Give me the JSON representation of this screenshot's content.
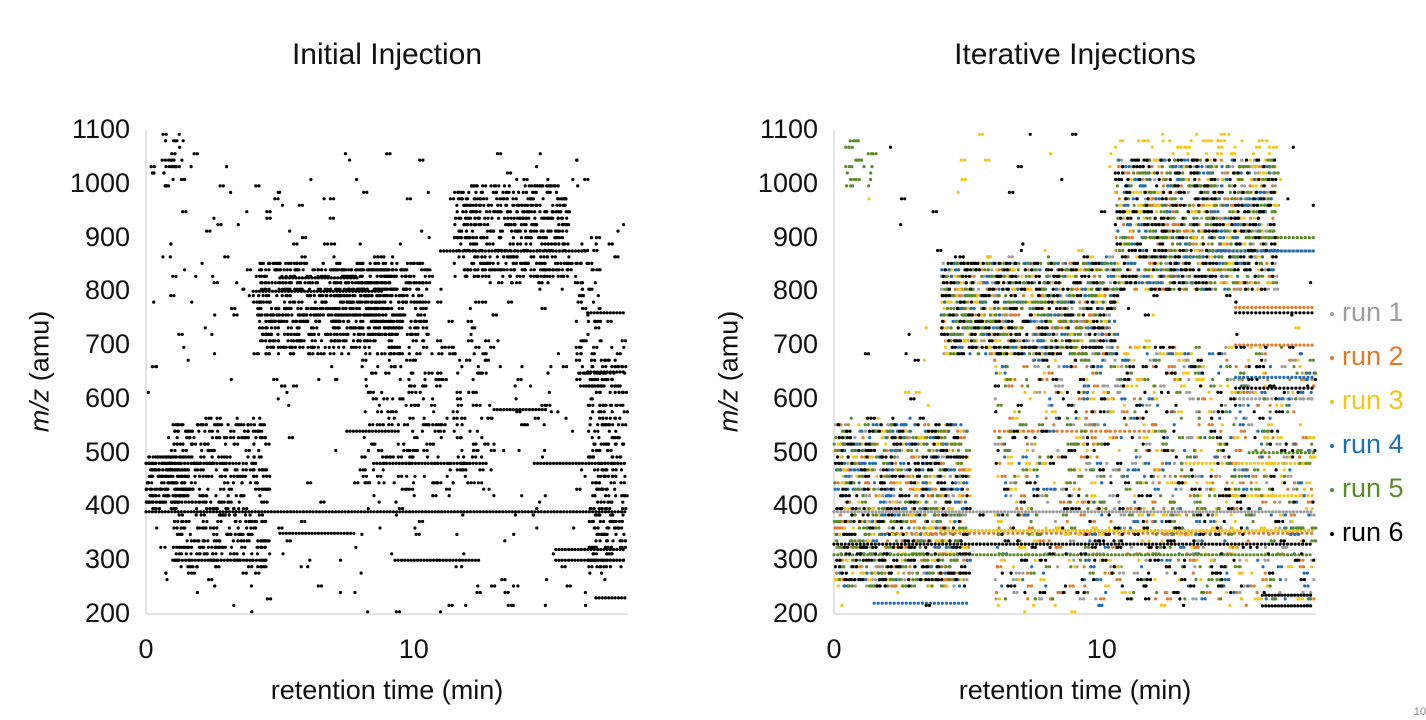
{
  "slide_number": "10",
  "chart_data": [
    {
      "type": "scatter",
      "title": "Initial Injection",
      "xlabel": "retention time (min)",
      "ylabel_italic": "m/z",
      "ylabel_rest": " (amu)",
      "xlim": [
        0,
        18
      ],
      "ylim": [
        200,
        1100
      ],
      "xticks": [
        0,
        10
      ],
      "yticks": [
        200,
        300,
        400,
        500,
        600,
        700,
        800,
        900,
        1000,
        1100
      ],
      "grid": false,
      "series": [
        {
          "color": "#000000",
          "clusters": [
            {
              "x": [
                0.0,
                1.5
              ],
              "y": [
                400,
                500
              ],
              "n": 160
            },
            {
              "x": [
                1.0,
                4.5
              ],
              "y": [
                280,
                560
              ],
              "n": 380
            },
            {
              "x": [
                4.0,
                9.5
              ],
              "y": [
                680,
                860
              ],
              "n": 520
            },
            {
              "x": [
                7.0,
                10.5
              ],
              "y": [
                720,
                850
              ],
              "n": 260
            },
            {
              "x": [
                11.5,
                15.8
              ],
              "y": [
                820,
                1000
              ],
              "n": 440
            },
            {
              "x": [
                0.6,
                1.4
              ],
              "y": [
                980,
                1090
              ],
              "n": 28
            },
            {
              "x": [
                16.0,
                17.0
              ],
              "y": [
                600,
                900
              ],
              "n": 70
            },
            {
              "x": [
                8.0,
                13.0
              ],
              "y": [
                420,
                720
              ],
              "n": 200
            },
            {
              "x": [
                16.5,
                17.9
              ],
              "y": [
                280,
                680
              ],
              "n": 240
            },
            {
              "x": [
                0.0,
                17.9
              ],
              "y": [
                200,
                1060
              ],
              "n": 380
            }
          ],
          "lines": [
            {
              "x": [
                0.0,
                17.9
              ],
              "y": 390,
              "step": 0.12
            },
            {
              "x": [
                0.0,
                3.6
              ],
              "y": 480,
              "step": 0.12
            },
            {
              "x": [
                8.5,
                12.7
              ],
              "y": 480,
              "step": 0.12
            },
            {
              "x": [
                14.5,
                17.9
              ],
              "y": 480,
              "step": 0.12
            },
            {
              "x": [
                4.0,
                8.8
              ],
              "y": 800,
              "step": 0.12
            },
            {
              "x": [
                5.0,
                8.0
              ],
              "y": 825,
              "step": 0.12
            },
            {
              "x": [
                11.0,
                16.5
              ],
              "y": 875,
              "step": 0.12
            },
            {
              "x": [
                1.0,
                4.5
              ],
              "y": 300,
              "step": 0.12
            },
            {
              "x": [
                9.3,
                12.5
              ],
              "y": 300,
              "step": 0.12
            },
            {
              "x": [
                15.3,
                17.9
              ],
              "y": 300,
              "step": 0.12
            },
            {
              "x": [
                15.3,
                17.9
              ],
              "y": 320,
              "step": 0.12
            },
            {
              "x": [
                16.8,
                17.9
              ],
              "y": 230,
              "step": 0.12
            },
            {
              "x": [
                16.5,
                17.9
              ],
              "y": 650,
              "step": 0.12
            },
            {
              "x": [
                16.5,
                17.9
              ],
              "y": 760,
              "step": 0.12
            },
            {
              "x": [
                5.0,
                7.8
              ],
              "y": 350,
              "step": 0.12
            },
            {
              "x": [
                7.5,
                9.5
              ],
              "y": 540,
              "step": 0.12
            },
            {
              "x": [
                13.0,
                15.0
              ],
              "y": 580,
              "step": 0.12
            }
          ]
        }
      ]
    },
    {
      "type": "scatter",
      "title": "Iterative Injections",
      "xlabel": "retention time (min)",
      "ylabel_italic": "m/z",
      "ylabel_rest": " (amu)",
      "xlim": [
        0,
        18
      ],
      "ylim": [
        200,
        1100
      ],
      "xticks": [
        0,
        10
      ],
      "yticks": [
        200,
        300,
        400,
        500,
        600,
        700,
        800,
        900,
        1000,
        1100
      ],
      "grid": false,
      "legend_position": "right",
      "series": [
        {
          "name": "run 1",
          "color": "#9e9e9e",
          "clusters": [
            {
              "x": [
                0.0,
                5.0
              ],
              "y": [
                250,
                560
              ],
              "n": 200
            },
            {
              "x": [
                4.0,
                10.5
              ],
              "y": [
                680,
                860
              ],
              "n": 220
            },
            {
              "x": [
                10.5,
                16.5
              ],
              "y": [
                800,
                1050
              ],
              "n": 220
            },
            {
              "x": [
                6.0,
                18.0
              ],
              "y": [
                220,
                700
              ],
              "n": 260
            }
          ],
          "lines": [
            {
              "x": [
                0.0,
                17.9
              ],
              "y": 390,
              "step": 0.13
            },
            {
              "x": [
                14.5,
                17.9
              ],
              "y": 875,
              "step": 0.15
            },
            {
              "x": [
                15.0,
                17.9
              ],
              "y": 600,
              "step": 0.15
            }
          ]
        },
        {
          "name": "run 2",
          "color": "#e07a2d",
          "clusters": [
            {
              "x": [
                0.0,
                5.0
              ],
              "y": [
                250,
                560
              ],
              "n": 200
            },
            {
              "x": [
                4.0,
                10.5
              ],
              "y": [
                680,
                860
              ],
              "n": 210
            },
            {
              "x": [
                10.5,
                16.5
              ],
              "y": [
                800,
                1050
              ],
              "n": 220
            },
            {
              "x": [
                6.0,
                18.0
              ],
              "y": [
                220,
                700
              ],
              "n": 250
            }
          ],
          "lines": [
            {
              "x": [
                2.0,
                17.9
              ],
              "y": 350,
              "step": 0.18
            },
            {
              "x": [
                15.0,
                17.9
              ],
              "y": 770,
              "step": 0.15
            },
            {
              "x": [
                15.0,
                17.9
              ],
              "y": 700,
              "step": 0.15
            },
            {
              "x": [
                6.0,
                12.0
              ],
              "y": 540,
              "step": 0.18
            }
          ]
        },
        {
          "name": "run 3",
          "color": "#f5c518",
          "clusters": [
            {
              "x": [
                0.0,
                5.0
              ],
              "y": [
                250,
                560
              ],
              "n": 220
            },
            {
              "x": [
                4.0,
                10.5
              ],
              "y": [
                680,
                860
              ],
              "n": 220
            },
            {
              "x": [
                10.5,
                16.5
              ],
              "y": [
                800,
                1090
              ],
              "n": 240
            },
            {
              "x": [
                6.0,
                18.0
              ],
              "y": [
                220,
                700
              ],
              "n": 260
            },
            {
              "x": [
                0.0,
                17.9
              ],
              "y": [
                200,
                1100
              ],
              "n": 80
            }
          ],
          "lines": [
            {
              "x": [
                4.0,
                17.9
              ],
              "y": 355,
              "step": 0.14
            },
            {
              "x": [
                15.0,
                17.9
              ],
              "y": 420,
              "step": 0.15
            },
            {
              "x": [
                13.0,
                17.9
              ],
              "y": 480,
              "step": 0.15
            }
          ]
        },
        {
          "name": "run 4",
          "color": "#1f6fb5",
          "clusters": [
            {
              "x": [
                0.0,
                5.0
              ],
              "y": [
                250,
                560
              ],
              "n": 180
            },
            {
              "x": [
                4.0,
                10.5
              ],
              "y": [
                680,
                860
              ],
              "n": 200
            },
            {
              "x": [
                10.5,
                16.5
              ],
              "y": [
                800,
                1050
              ],
              "n": 220
            },
            {
              "x": [
                6.0,
                18.0
              ],
              "y": [
                220,
                700
              ],
              "n": 220
            }
          ],
          "lines": [
            {
              "x": [
                14.0,
                17.9
              ],
              "y": 875,
              "step": 0.15
            },
            {
              "x": [
                1.5,
                5.0
              ],
              "y": 220,
              "step": 0.15
            },
            {
              "x": [
                15.0,
                17.9
              ],
              "y": 640,
              "step": 0.15
            }
          ]
        },
        {
          "name": "run 5",
          "color": "#5b8c2a",
          "clusters": [
            {
              "x": [
                0.0,
                5.0
              ],
              "y": [
                250,
                560
              ],
              "n": 220
            },
            {
              "x": [
                4.0,
                10.5
              ],
              "y": [
                680,
                860
              ],
              "n": 220
            },
            {
              "x": [
                10.5,
                16.5
              ],
              "y": [
                800,
                1050
              ],
              "n": 230
            },
            {
              "x": [
                6.0,
                18.0
              ],
              "y": [
                220,
                700
              ],
              "n": 240
            },
            {
              "x": [
                0.4,
                1.6
              ],
              "y": [
                990,
                1090
              ],
              "n": 25
            }
          ],
          "lines": [
            {
              "x": [
                0.0,
                17.9
              ],
              "y": 310,
              "step": 0.14
            },
            {
              "x": [
                15.5,
                17.9
              ],
              "y": 900,
              "step": 0.15
            },
            {
              "x": [
                15.5,
                17.9
              ],
              "y": 500,
              "step": 0.15
            }
          ]
        },
        {
          "name": "run 6",
          "color": "#000000",
          "clusters": [
            {
              "x": [
                0.0,
                5.0
              ],
              "y": [
                250,
                560
              ],
              "n": 240
            },
            {
              "x": [
                4.0,
                10.5
              ],
              "y": [
                680,
                860
              ],
              "n": 240
            },
            {
              "x": [
                10.5,
                16.5
              ],
              "y": [
                800,
                1050
              ],
              "n": 240
            },
            {
              "x": [
                6.0,
                18.0
              ],
              "y": [
                220,
                700
              ],
              "n": 260
            },
            {
              "x": [
                0.0,
                17.9
              ],
              "y": [
                200,
                1100
              ],
              "n": 90
            }
          ],
          "lines": [
            {
              "x": [
                0.0,
                17.9
              ],
              "y": 330,
              "step": 0.14
            },
            {
              "x": [
                15.0,
                17.9
              ],
              "y": 760,
              "step": 0.15
            },
            {
              "x": [
                15.0,
                17.9
              ],
              "y": 620,
              "step": 0.15
            },
            {
              "x": [
                16.0,
                17.9
              ],
              "y": 215,
              "step": 0.12
            },
            {
              "x": [
                16.0,
                17.9
              ],
              "y": 235,
              "step": 0.12
            }
          ]
        }
      ]
    }
  ]
}
